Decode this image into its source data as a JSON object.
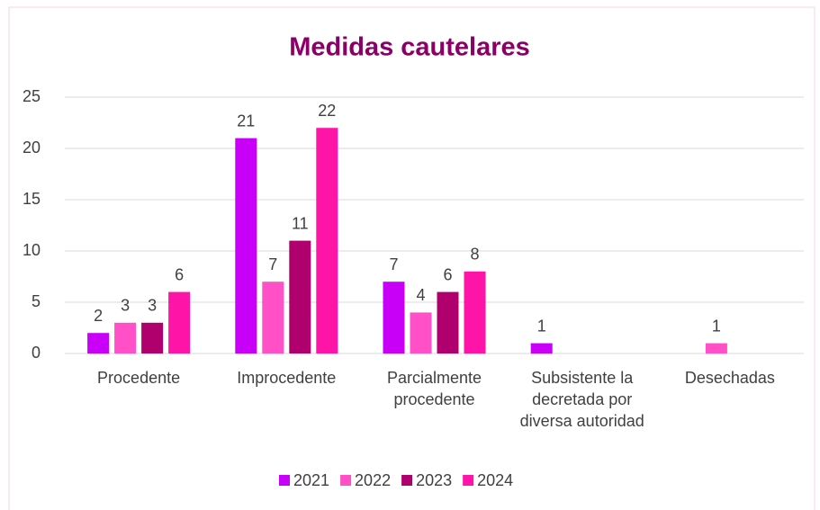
{
  "chart_data": {
    "type": "bar",
    "title": "Medidas cautelares",
    "categories": [
      "Procedente",
      "Improcedente",
      "Parcialmente procedente",
      "Subsistente la decretada por diversa autoridad",
      "Desechadas"
    ],
    "series": [
      {
        "name": "2021",
        "color": "#c800f8",
        "values": [
          2,
          21,
          7,
          1,
          null
        ]
      },
      {
        "name": "2022",
        "color": "#ff50c8",
        "values": [
          3,
          7,
          4,
          null,
          1
        ]
      },
      {
        "name": "2023",
        "color": "#b0006e",
        "values": [
          3,
          11,
          6,
          null,
          null
        ]
      },
      {
        "name": "2024",
        "color": "#ff14a8",
        "values": [
          6,
          22,
          8,
          null,
          null
        ]
      }
    ],
    "ylim": [
      0,
      25
    ],
    "yticks": [
      0,
      5,
      10,
      15,
      20,
      25
    ],
    "grid": true,
    "legend": "bottom"
  }
}
